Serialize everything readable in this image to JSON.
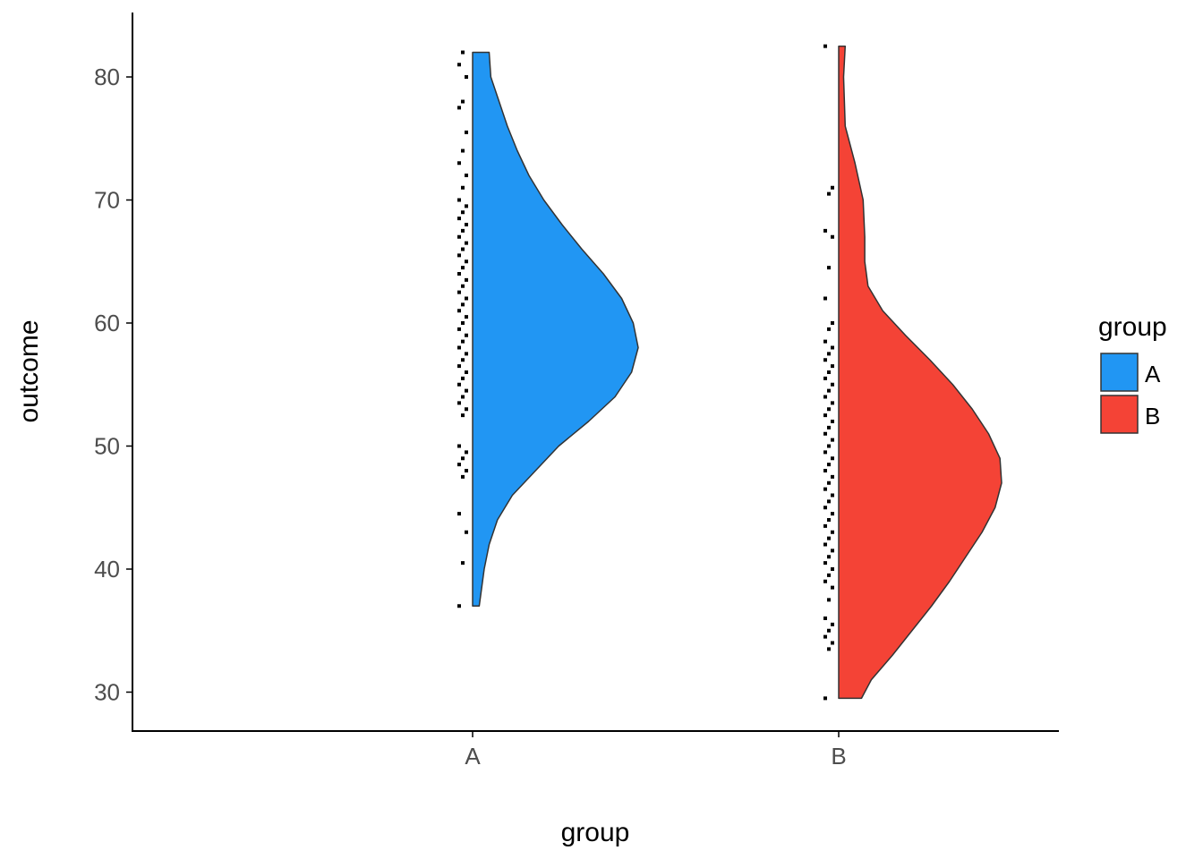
{
  "chart_data": {
    "type": "half-violin",
    "title": "",
    "xlabel": "group",
    "ylabel": "outcome",
    "categories": [
      "A",
      "B"
    ],
    "ylim": [
      27.5,
      84
    ],
    "yticks": [
      30,
      40,
      50,
      60,
      70,
      80
    ],
    "legend": {
      "title": "group",
      "position": "right",
      "entries": [
        "A",
        "B"
      ]
    },
    "colors": {
      "A": "#2196F3",
      "B": "#F44336",
      "outline": "#333333",
      "axis": "#000000",
      "points": "#000000"
    },
    "grid": false,
    "series": [
      {
        "name": "A",
        "range": [
          37,
          82
        ],
        "density_profile": [
          [
            37,
            0.04
          ],
          [
            38,
            0.05
          ],
          [
            40,
            0.07
          ],
          [
            42,
            0.1
          ],
          [
            44,
            0.15
          ],
          [
            46,
            0.24
          ],
          [
            48,
            0.38
          ],
          [
            50,
            0.52
          ],
          [
            52,
            0.7
          ],
          [
            54,
            0.86
          ],
          [
            56,
            0.96
          ],
          [
            58,
            1.0
          ],
          [
            60,
            0.97
          ],
          [
            62,
            0.9
          ],
          [
            64,
            0.79
          ],
          [
            66,
            0.66
          ],
          [
            68,
            0.54
          ],
          [
            70,
            0.43
          ],
          [
            72,
            0.34
          ],
          [
            74,
            0.27
          ],
          [
            76,
            0.21
          ],
          [
            78,
            0.16
          ],
          [
            80,
            0.11
          ],
          [
            82,
            0.1
          ]
        ],
        "points": [
          37,
          40.5,
          43,
          44.5,
          47.5,
          48,
          48.5,
          49,
          49.5,
          50,
          52.5,
          53,
          53.5,
          54,
          54.5,
          55,
          55.5,
          56,
          56.5,
          57,
          57.5,
          58,
          58.5,
          59,
          59.5,
          60,
          60.5,
          61,
          61.5,
          62,
          62.5,
          63,
          63.5,
          64,
          64.5,
          65,
          65.5,
          66,
          66.5,
          67,
          67.5,
          68,
          68.5,
          69,
          69.5,
          70,
          71,
          72,
          73,
          74,
          75.5,
          77.5,
          78,
          80,
          81,
          82
        ]
      },
      {
        "name": "B",
        "range": [
          29.5,
          82.5
        ],
        "density_profile": [
          [
            29.5,
            0.14
          ],
          [
            31,
            0.2
          ],
          [
            33,
            0.33
          ],
          [
            35,
            0.45
          ],
          [
            37,
            0.57
          ],
          [
            39,
            0.68
          ],
          [
            41,
            0.78
          ],
          [
            43,
            0.88
          ],
          [
            45,
            0.96
          ],
          [
            47,
            1.0
          ],
          [
            49,
            0.99
          ],
          [
            51,
            0.92
          ],
          [
            53,
            0.82
          ],
          [
            55,
            0.7
          ],
          [
            57,
            0.56
          ],
          [
            59,
            0.41
          ],
          [
            61,
            0.27
          ],
          [
            63,
            0.18
          ],
          [
            65,
            0.16
          ],
          [
            67,
            0.16
          ],
          [
            70,
            0.15
          ],
          [
            73,
            0.1
          ],
          [
            76,
            0.04
          ],
          [
            80,
            0.03
          ],
          [
            82.5,
            0.04
          ]
        ],
        "points": [
          29.5,
          33.5,
          34,
          34.5,
          35,
          35.5,
          36,
          37.5,
          38.5,
          39,
          39.5,
          40,
          40.5,
          41,
          41.5,
          42,
          42.5,
          43,
          43.5,
          44,
          44.5,
          45,
          45.5,
          46,
          46.5,
          47,
          47.5,
          48,
          48.5,
          49,
          49.5,
          50,
          50.5,
          51,
          51.5,
          52,
          52.5,
          53,
          53.5,
          54,
          54.5,
          55,
          55.5,
          56,
          56.5,
          57,
          57.5,
          58,
          58.5,
          59.5,
          60,
          62,
          64.5,
          67,
          67.5,
          70.5,
          71,
          82.5
        ]
      }
    ]
  }
}
